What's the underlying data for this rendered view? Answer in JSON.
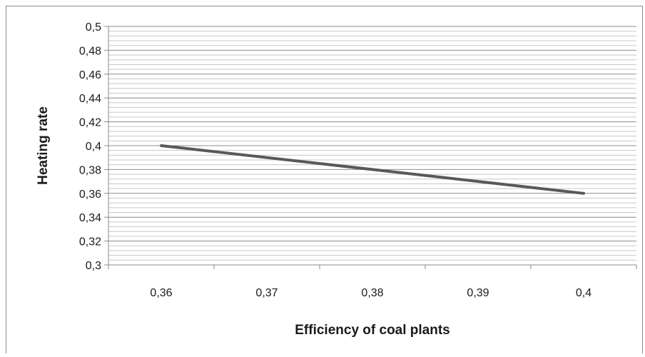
{
  "chart_data": {
    "type": "line",
    "title": "",
    "xlabel": "Efficiency of coal plants",
    "ylabel": "Heating rate",
    "categories": [
      "0,36",
      "0,37",
      "0,38",
      "0,39",
      "0,4"
    ],
    "x": [
      0.36,
      0.37,
      0.38,
      0.39,
      0.4
    ],
    "series": [
      {
        "values": [
          0.4,
          0.39,
          0.38,
          0.37,
          0.36
        ]
      }
    ],
    "ylim": [
      0.3,
      0.5
    ],
    "y_major_step": 0.02,
    "y_minor_step": 0.004,
    "y_tick_labels": [
      "0,3",
      "0,32",
      "0,34",
      "0,36",
      "0,38",
      "0,4",
      "0,42",
      "0,44",
      "0,46",
      "0,48",
      "0,5"
    ],
    "grid": true,
    "legend": "none",
    "colors": {
      "line": "#595959",
      "major_grid": "#8c8c8c",
      "minor_grid": "#c8c8c8",
      "frame": "#8c8c8c"
    }
  }
}
